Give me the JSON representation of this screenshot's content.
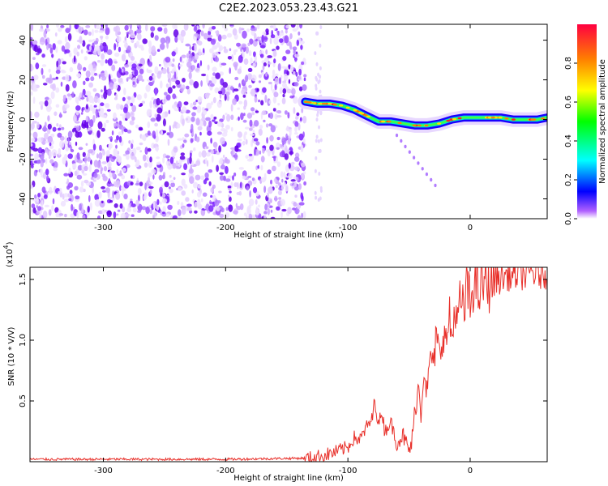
{
  "chart_data": [
    {
      "type": "heatmap",
      "title": "C2E2.2023.053.23.43.G21",
      "xlabel": "Height of straight line (km)",
      "ylabel": "Frequency (Hz)",
      "xlim": [
        -360,
        63
      ],
      "ylim": [
        -50,
        48
      ],
      "xticks": [
        -300,
        -200,
        -100,
        0
      ],
      "yticks": [
        -40,
        -20,
        0,
        20,
        40
      ],
      "colorbar": {
        "label": "Normalized spectral amplitude",
        "range": [
          0,
          1
        ],
        "ticks": [
          "0.0",
          "0.2",
          "0.4",
          "0.6",
          "0.8"
        ],
        "tick_values": [
          0,
          0.2,
          0.4,
          0.6,
          0.8
        ],
        "colors": [
          "#ffffff",
          "#7f00ff",
          "#0000ff",
          "#00ffff",
          "#00ff00",
          "#ffff00",
          "#ff8000",
          "#ff0000"
        ]
      },
      "noise_region": {
        "x": [
          -360,
          -135
        ],
        "y": [
          -50,
          48
        ]
      },
      "signal_track": {
        "x": [
          -135,
          -125,
          -115,
          -105,
          -95,
          -85,
          -75,
          -65,
          -55,
          -45,
          -35,
          -25,
          -15,
          -5,
          5,
          15,
          25,
          35,
          45,
          55,
          63
        ],
        "y": [
          9,
          8,
          8,
          7,
          5,
          2,
          -1,
          -1,
          -2,
          -3,
          -3,
          -2,
          0,
          1,
          1,
          1,
          1,
          0,
          0,
          0,
          1
        ]
      },
      "grid": false
    },
    {
      "type": "line",
      "xlabel": "Height of straight line (km)",
      "ylabel": "SNR (10 * V/V)",
      "exponent_label": "(x10",
      "exponent_value": "4",
      "xlim": [
        -360,
        63
      ],
      "ylim": [
        0,
        1.6
      ],
      "xticks": [
        -300,
        -200,
        -100,
        0
      ],
      "yticks": [
        0.5,
        1.0,
        1.5
      ],
      "ytick_labels": [
        "0.5",
        "1.0",
        "1.5"
      ],
      "series": [
        {
          "color": "#e8302a",
          "x": [
            -360,
            -300,
            -200,
            -130,
            -120,
            -110,
            -100,
            -95,
            -90,
            -85,
            -80,
            -78,
            -75,
            -72,
            -70,
            -65,
            -60,
            -55,
            -50,
            -47,
            -45,
            -42,
            -40,
            -38,
            -35,
            -32,
            -30,
            -28,
            -25,
            -22,
            -20,
            -17,
            -15,
            -12,
            -10,
            -8,
            -5,
            -3,
            0,
            3,
            5,
            8,
            10,
            15,
            20,
            25,
            30,
            35,
            40,
            45,
            50,
            55,
            63
          ],
          "y": [
            0.02,
            0.02,
            0.02,
            0.03,
            0.05,
            0.08,
            0.12,
            0.2,
            0.18,
            0.28,
            0.35,
            0.52,
            0.3,
            0.42,
            0.25,
            0.33,
            0.15,
            0.22,
            0.08,
            0.2,
            0.45,
            0.62,
            0.4,
            0.8,
            0.55,
            0.95,
            0.7,
            1.05,
            0.85,
            1.1,
            0.95,
            1.2,
            1.0,
            1.3,
            1.1,
            1.35,
            1.2,
            1.45,
            1.28,
            1.5,
            1.42,
            1.4,
            1.48,
            1.45,
            1.52,
            1.5,
            1.54,
            1.52,
            1.55,
            1.53,
            1.56,
            1.54,
            1.55
          ]
        }
      ],
      "grid": false
    }
  ]
}
